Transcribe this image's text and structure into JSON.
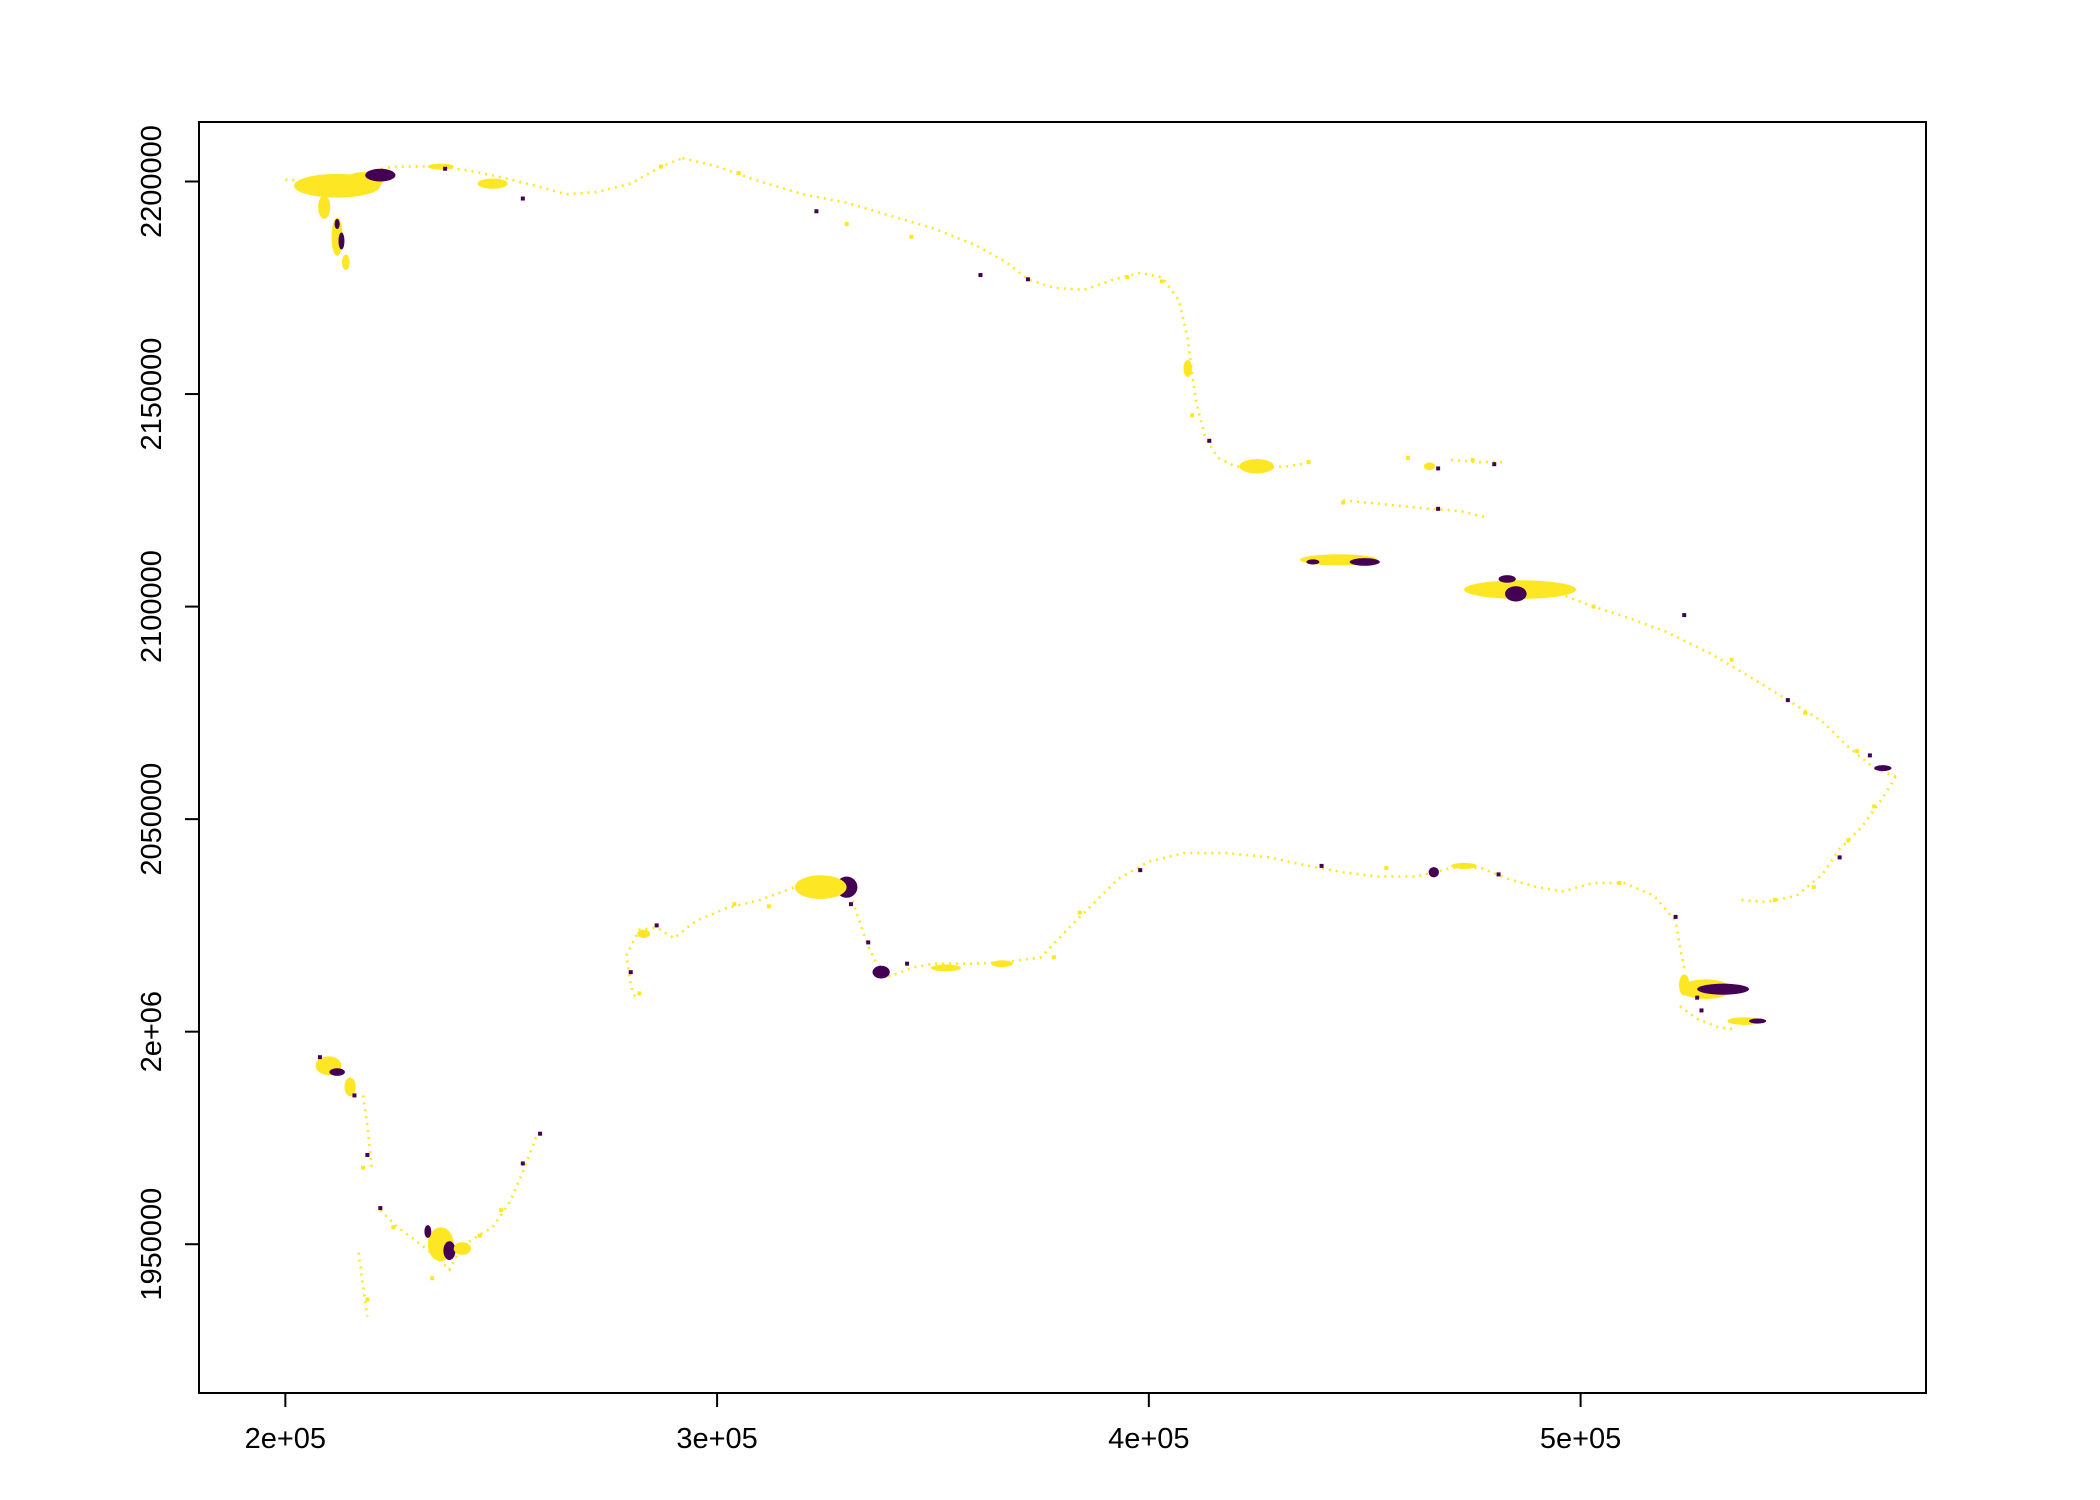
{
  "chart_data": {
    "type": "heatmap",
    "title": "",
    "xlabel": "",
    "ylabel": "",
    "xlim": [
      180000,
      580000
    ],
    "ylim": [
      1915000,
      2214000
    ],
    "x_ticks": [
      {
        "value": 200000,
        "label": "2e+05"
      },
      {
        "value": 300000,
        "label": "3e+05"
      },
      {
        "value": 400000,
        "label": "4e+05"
      },
      {
        "value": 500000,
        "label": "5e+05"
      }
    ],
    "y_ticks": [
      {
        "value": 1950000,
        "label": "1950000"
      },
      {
        "value": 2000000,
        "label": "2e+06"
      },
      {
        "value": 2050000,
        "label": "2050000"
      },
      {
        "value": 2100000,
        "label": "2100000"
      },
      {
        "value": 2150000,
        "label": "2150000"
      },
      {
        "value": 2200000,
        "label": "2200000"
      }
    ],
    "colors": {
      "high": "#FDE725",
      "low": "#440154",
      "background": "#FFFFFF"
    },
    "legend": "none",
    "grid": false,
    "paths": [
      [
        [
          200000,
          2200500
        ],
        [
          205000,
          2200000
        ],
        [
          210000,
          2199500
        ],
        [
          215000,
          2200500
        ],
        [
          220000,
          2202500
        ],
        [
          225000,
          2203500
        ],
        [
          230000,
          2203500
        ],
        [
          236000,
          2203500
        ],
        [
          243000,
          2202500
        ],
        [
          250000,
          2201000
        ],
        [
          258000,
          2199000
        ],
        [
          265000,
          2197000
        ],
        [
          272000,
          2197500
        ],
        [
          280000,
          2199500
        ],
        [
          287000,
          2203500
        ],
        [
          292000,
          2205500
        ]
      ],
      [
        [
          292000,
          2205500
        ],
        [
          300000,
          2203500
        ],
        [
          310000,
          2200000
        ],
        [
          320000,
          2197000
        ],
        [
          330000,
          2195000
        ],
        [
          340000,
          2192000
        ],
        [
          350000,
          2189000
        ],
        [
          360000,
          2185000
        ],
        [
          367000,
          2181000
        ],
        [
          372000,
          2177000
        ],
        [
          378000,
          2175000
        ],
        [
          385000,
          2174500
        ],
        [
          392000,
          2177000
        ],
        [
          398000,
          2178500
        ],
        [
          403000,
          2177500
        ],
        [
          407000,
          2172000
        ],
        [
          409000,
          2163000
        ],
        [
          410000,
          2155000
        ],
        [
          411000,
          2148000
        ],
        [
          413000,
          2140000
        ],
        [
          416000,
          2135000
        ],
        [
          420000,
          2133000
        ],
        [
          425000,
          2132500
        ],
        [
          432000,
          2133000
        ],
        [
          438000,
          2134000
        ]
      ],
      [
        [
          445000,
          2125000
        ],
        [
          455000,
          2124000
        ],
        [
          465000,
          2123000
        ],
        [
          472000,
          2122500
        ],
        [
          478000,
          2121000
        ]
      ],
      [
        [
          470000,
          2134500
        ],
        [
          476000,
          2134000
        ],
        [
          482000,
          2134000
        ]
      ],
      [
        [
          495000,
          2103000
        ],
        [
          503000,
          2100000
        ],
        [
          512000,
          2097000
        ],
        [
          520000,
          2094000
        ],
        [
          530000,
          2089000
        ],
        [
          540000,
          2083000
        ],
        [
          548000,
          2078000
        ],
        [
          556000,
          2073000
        ],
        [
          562000,
          2067000
        ],
        [
          568000,
          2062000
        ],
        [
          573000,
          2060000
        ]
      ],
      [
        [
          573000,
          2060000
        ],
        [
          570000,
          2055000
        ],
        [
          565000,
          2048000
        ],
        [
          560000,
          2043000
        ],
        [
          556000,
          2037000
        ],
        [
          550000,
          2032000
        ],
        [
          543000,
          2030500
        ],
        [
          537000,
          2031000
        ]
      ],
      [
        [
          524000,
          2015000
        ],
        [
          523000,
          2020000
        ],
        [
          522000,
          2026000
        ],
        [
          517000,
          2032000
        ],
        [
          510000,
          2035000
        ],
        [
          503000,
          2035000
        ],
        [
          496000,
          2033000
        ],
        [
          490000,
          2034000
        ],
        [
          483000,
          2036000
        ],
        [
          477000,
          2038500
        ],
        [
          470000,
          2038500
        ],
        [
          462000,
          2036500
        ],
        [
          453000,
          2036500
        ],
        [
          445000,
          2037500
        ],
        [
          437000,
          2039000
        ],
        [
          428000,
          2041000
        ],
        [
          418000,
          2042000
        ],
        [
          408000,
          2042000
        ],
        [
          400000,
          2040000
        ],
        [
          393000,
          2036000
        ],
        [
          388000,
          2031000
        ],
        [
          383000,
          2026000
        ],
        [
          375000,
          2017500
        ],
        [
          368000,
          2016500
        ],
        [
          360000,
          2016000
        ],
        [
          350000,
          2016000
        ],
        [
          345000,
          2015000
        ],
        [
          340000,
          2013000
        ],
        [
          337000,
          2016000
        ],
        [
          335000,
          2020000
        ],
        [
          333000,
          2026000
        ],
        [
          331000,
          2032000
        ],
        [
          326000,
          2035500
        ],
        [
          318000,
          2034000
        ],
        [
          310000,
          2031000
        ],
        [
          302000,
          2029000
        ],
        [
          295000,
          2026000
        ],
        [
          290000,
          2022000
        ],
        [
          286000,
          2024500
        ],
        [
          282000,
          2024000
        ],
        [
          279000,
          2018000
        ],
        [
          280000,
          2011000
        ],
        [
          281000,
          2008000
        ]
      ],
      [
        [
          523000,
          2006000
        ],
        [
          527000,
          2003000
        ],
        [
          532000,
          2001000
        ],
        [
          536000,
          2000500
        ]
      ],
      [
        [
          222000,
          1958000
        ],
        [
          226000,
          1954000
        ],
        [
          230000,
          1951000
        ],
        [
          235000,
          1947000
        ],
        [
          238000,
          1944000
        ],
        [
          240000,
          1948000
        ],
        [
          243000,
          1951000
        ],
        [
          248000,
          1954000
        ],
        [
          252000,
          1960000
        ],
        [
          255000,
          1967000
        ],
        [
          258000,
          1975000
        ],
        [
          260000,
          1977000
        ]
      ],
      [
        [
          218000,
          1985000
        ],
        [
          219000,
          1978000
        ],
        [
          220000,
          1968000
        ]
      ],
      [
        [
          217000,
          1948000
        ],
        [
          218000,
          1940000
        ],
        [
          219000,
          1933000
        ]
      ]
    ],
    "blobs": [
      {
        "x": 212000,
        "y": 2199000,
        "rx": 10000,
        "ry": 2800,
        "fill": "high"
      },
      {
        "x": 218000,
        "y": 2200000,
        "rx": 4500,
        "ry": 2200,
        "fill": "high"
      },
      {
        "x": 222000,
        "y": 2201500,
        "rx": 3500,
        "ry": 1500,
        "fill": "low"
      },
      {
        "x": 209000,
        "y": 2194000,
        "rx": 1400,
        "ry": 2800,
        "fill": "high"
      },
      {
        "x": 212000,
        "y": 2187000,
        "rx": 1300,
        "ry": 4500,
        "fill": "high"
      },
      {
        "x": 213000,
        "y": 2186000,
        "rx": 700,
        "ry": 2000,
        "fill": "low"
      },
      {
        "x": 214000,
        "y": 2181000,
        "rx": 900,
        "ry": 1800,
        "fill": "high"
      },
      {
        "x": 212000,
        "y": 2190000,
        "rx": 600,
        "ry": 1200,
        "fill": "low"
      },
      {
        "x": 248000,
        "y": 2199500,
        "rx": 3500,
        "ry": 1200,
        "fill": "high"
      },
      {
        "x": 236000,
        "y": 2203500,
        "rx": 3000,
        "ry": 700,
        "fill": "high"
      },
      {
        "x": 409000,
        "y": 2156000,
        "rx": 1000,
        "ry": 2000,
        "fill": "high"
      },
      {
        "x": 425000,
        "y": 2133000,
        "rx": 4000,
        "ry": 1700,
        "fill": "high"
      },
      {
        "x": 465000,
        "y": 2133000,
        "rx": 1300,
        "ry": 900,
        "fill": "high"
      },
      {
        "x": 444000,
        "y": 2111000,
        "rx": 9000,
        "ry": 1300,
        "fill": "high"
      },
      {
        "x": 450000,
        "y": 2110500,
        "rx": 3500,
        "ry": 900,
        "fill": "low"
      },
      {
        "x": 438000,
        "y": 2110500,
        "rx": 1500,
        "ry": 600,
        "fill": "low"
      },
      {
        "x": 486000,
        "y": 2104000,
        "rx": 13000,
        "ry": 2200,
        "fill": "high"
      },
      {
        "x": 485000,
        "y": 2103000,
        "rx": 2500,
        "ry": 1800,
        "fill": "low"
      },
      {
        "x": 483000,
        "y": 2106500,
        "rx": 2000,
        "ry": 900,
        "fill": "low"
      },
      {
        "x": 491000,
        "y": 2104000,
        "rx": 3500,
        "ry": 1300,
        "fill": "high"
      },
      {
        "x": 570000,
        "y": 2062000,
        "rx": 2000,
        "ry": 700,
        "fill": "low"
      },
      {
        "x": 330000,
        "y": 2034000,
        "rx": 2500,
        "ry": 2500,
        "fill": "low"
      },
      {
        "x": 324000,
        "y": 2034000,
        "rx": 6000,
        "ry": 2800,
        "fill": "high"
      },
      {
        "x": 338000,
        "y": 2014000,
        "rx": 2000,
        "ry": 1500,
        "fill": "low"
      },
      {
        "x": 366000,
        "y": 2016000,
        "rx": 2500,
        "ry": 800,
        "fill": "high"
      },
      {
        "x": 353000,
        "y": 2015000,
        "rx": 3500,
        "ry": 800,
        "fill": "high"
      },
      {
        "x": 466000,
        "y": 2037500,
        "rx": 1200,
        "ry": 1200,
        "fill": "low"
      },
      {
        "x": 473000,
        "y": 2039000,
        "rx": 3000,
        "ry": 700,
        "fill": "high"
      },
      {
        "x": 283000,
        "y": 2023000,
        "rx": 1500,
        "ry": 1000,
        "fill": "high"
      },
      {
        "x": 529000,
        "y": 2010000,
        "rx": 6000,
        "ry": 2300,
        "fill": "high"
      },
      {
        "x": 533000,
        "y": 2010000,
        "rx": 6000,
        "ry": 1300,
        "fill": "low"
      },
      {
        "x": 524000,
        "y": 2011000,
        "rx": 1200,
        "ry": 2500,
        "fill": "high"
      },
      {
        "x": 538000,
        "y": 2002500,
        "rx": 4000,
        "ry": 900,
        "fill": "high"
      },
      {
        "x": 541000,
        "y": 2002500,
        "rx": 2000,
        "ry": 600,
        "fill": "low"
      },
      {
        "x": 210000,
        "y": 1992000,
        "rx": 3000,
        "ry": 2200,
        "fill": "high"
      },
      {
        "x": 212000,
        "y": 1990500,
        "rx": 1800,
        "ry": 900,
        "fill": "low"
      },
      {
        "x": 215000,
        "y": 1987000,
        "rx": 1300,
        "ry": 2200,
        "fill": "high"
      },
      {
        "x": 236000,
        "y": 1950000,
        "rx": 3000,
        "ry": 4000,
        "fill": "high"
      },
      {
        "x": 238000,
        "y": 1948500,
        "rx": 1400,
        "ry": 2200,
        "fill": "low"
      },
      {
        "x": 241000,
        "y": 1949000,
        "rx": 2000,
        "ry": 1500,
        "fill": "high"
      },
      {
        "x": 233000,
        "y": 1953000,
        "rx": 800,
        "ry": 1500,
        "fill": "low"
      }
    ],
    "specks": [
      {
        "x": 237000,
        "y": 2203000,
        "fill": "low"
      },
      {
        "x": 255000,
        "y": 2196000,
        "fill": "low"
      },
      {
        "x": 287000,
        "y": 2203500,
        "fill": "high"
      },
      {
        "x": 305000,
        "y": 2202000,
        "fill": "high"
      },
      {
        "x": 323000,
        "y": 2193000,
        "fill": "low"
      },
      {
        "x": 330000,
        "y": 2190000,
        "fill": "high"
      },
      {
        "x": 345000,
        "y": 2187000,
        "fill": "high"
      },
      {
        "x": 361000,
        "y": 2178000,
        "fill": "low"
      },
      {
        "x": 372000,
        "y": 2177000,
        "fill": "low"
      },
      {
        "x": 395000,
        "y": 2177500,
        "fill": "high"
      },
      {
        "x": 403000,
        "y": 2176500,
        "fill": "high"
      },
      {
        "x": 410000,
        "y": 2145000,
        "fill": "high"
      },
      {
        "x": 414000,
        "y": 2139000,
        "fill": "low"
      },
      {
        "x": 437000,
        "y": 2134000,
        "fill": "high"
      },
      {
        "x": 460000,
        "y": 2135000,
        "fill": "high"
      },
      {
        "x": 467000,
        "y": 2132500,
        "fill": "low"
      },
      {
        "x": 475000,
        "y": 2134500,
        "fill": "high"
      },
      {
        "x": 480000,
        "y": 2133500,
        "fill": "low"
      },
      {
        "x": 467000,
        "y": 2123000,
        "fill": "low"
      },
      {
        "x": 445000,
        "y": 2124500,
        "fill": "high"
      },
      {
        "x": 503000,
        "y": 2100000,
        "fill": "high"
      },
      {
        "x": 524000,
        "y": 2098000,
        "fill": "low"
      },
      {
        "x": 535000,
        "y": 2087500,
        "fill": "high"
      },
      {
        "x": 548000,
        "y": 2078000,
        "fill": "low"
      },
      {
        "x": 552000,
        "y": 2075000,
        "fill": "high"
      },
      {
        "x": 564000,
        "y": 2066000,
        "fill": "high"
      },
      {
        "x": 567000,
        "y": 2065000,
        "fill": "low"
      },
      {
        "x": 568000,
        "y": 2053000,
        "fill": "high"
      },
      {
        "x": 562000,
        "y": 2045000,
        "fill": "high"
      },
      {
        "x": 560000,
        "y": 2041000,
        "fill": "low"
      },
      {
        "x": 554000,
        "y": 2034000,
        "fill": "high"
      },
      {
        "x": 545000,
        "y": 2031000,
        "fill": "high"
      },
      {
        "x": 522000,
        "y": 2027000,
        "fill": "low"
      },
      {
        "x": 509000,
        "y": 2035000,
        "fill": "high"
      },
      {
        "x": 481000,
        "y": 2037000,
        "fill": "low"
      },
      {
        "x": 455000,
        "y": 2038500,
        "fill": "high"
      },
      {
        "x": 440000,
        "y": 2039000,
        "fill": "low"
      },
      {
        "x": 398000,
        "y": 2038000,
        "fill": "low"
      },
      {
        "x": 384000,
        "y": 2028000,
        "fill": "high"
      },
      {
        "x": 378000,
        "y": 2017500,
        "fill": "high"
      },
      {
        "x": 344000,
        "y": 2016000,
        "fill": "low"
      },
      {
        "x": 335000,
        "y": 2021000,
        "fill": "low"
      },
      {
        "x": 331000,
        "y": 2030000,
        "fill": "low"
      },
      {
        "x": 312000,
        "y": 2029500,
        "fill": "high"
      },
      {
        "x": 304000,
        "y": 2030000,
        "fill": "high"
      },
      {
        "x": 286000,
        "y": 2025000,
        "fill": "low"
      },
      {
        "x": 280000,
        "y": 2014000,
        "fill": "low"
      },
      {
        "x": 282000,
        "y": 2009000,
        "fill": "high"
      },
      {
        "x": 528000,
        "y": 2005000,
        "fill": "low"
      },
      {
        "x": 527000,
        "y": 2008000,
        "fill": "low"
      },
      {
        "x": 208000,
        "y": 1994000,
        "fill": "low"
      },
      {
        "x": 216000,
        "y": 1985000,
        "fill": "low"
      },
      {
        "x": 219000,
        "y": 1971000,
        "fill": "low"
      },
      {
        "x": 218000,
        "y": 1968000,
        "fill": "high"
      },
      {
        "x": 222000,
        "y": 1958500,
        "fill": "low"
      },
      {
        "x": 225000,
        "y": 1954000,
        "fill": "high"
      },
      {
        "x": 245000,
        "y": 1952000,
        "fill": "high"
      },
      {
        "x": 250000,
        "y": 1958000,
        "fill": "high"
      },
      {
        "x": 255000,
        "y": 1969000,
        "fill": "low"
      },
      {
        "x": 259000,
        "y": 1976000,
        "fill": "low"
      },
      {
        "x": 234000,
        "y": 1942000,
        "fill": "high"
      },
      {
        "x": 219000,
        "y": 1937000,
        "fill": "high"
      }
    ]
  }
}
